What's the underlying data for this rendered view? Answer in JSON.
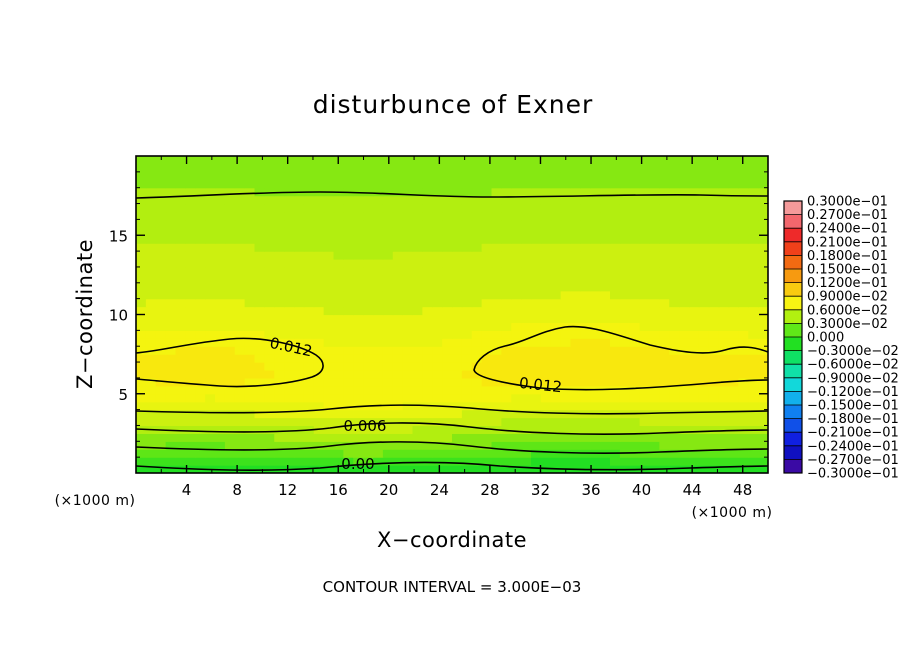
{
  "chart_data": {
    "type": "heatmap",
    "title": "disturbunce of Exner",
    "xlabel": "X−coordinate",
    "ylabel": "Z−coordinate",
    "x_unit_label_left": "(×1000 m)",
    "x_unit_label_right": "(×1000 m)",
    "xlim": [
      0,
      50
    ],
    "ylim": [
      0,
      20
    ],
    "x_ticks": [
      4,
      8,
      12,
      16,
      20,
      24,
      28,
      32,
      36,
      40,
      44,
      48
    ],
    "y_ticks": [
      5,
      10,
      15
    ],
    "contour_interval_text": "CONTOUR INTERVAL = 3.000E−03",
    "contour_labels": [
      {
        "text": "0.012",
        "x": 12.5,
        "z": 7.7
      },
      {
        "text": "0.012",
        "x": 32.0,
        "z": 5.8
      },
      {
        "text": "0.006",
        "x": 18.0,
        "z": 3.0
      },
      {
        "text": "0.00",
        "x": 17.5,
        "z": 0.5
      }
    ],
    "field_rows_z_bottom_to_top": [
      {
        "z": 0.25,
        "values": [
          0.0,
          0.0005,
          0.001,
          0.0015,
          0.001,
          0.0,
          0.0,
          0.0005,
          0.0
        ]
      },
      {
        "z": 1.5,
        "values": [
          0.004,
          0.0038,
          0.0045,
          0.0055,
          0.0045,
          0.0038,
          0.0035,
          0.004,
          0.0042
        ]
      },
      {
        "z": 3.0,
        "values": [
          0.0075,
          0.007,
          0.0078,
          0.0085,
          0.0078,
          0.0068,
          0.0065,
          0.0072,
          0.0075
        ]
      },
      {
        "z": 4.5,
        "values": [
          0.0105,
          0.01,
          0.0108,
          0.0112,
          0.0108,
          0.01,
          0.01,
          0.0104,
          0.0105
        ]
      },
      {
        "z": 6.0,
        "values": [
          0.0122,
          0.0128,
          0.0118,
          0.0115,
          0.0118,
          0.0128,
          0.0134,
          0.0126,
          0.0122
        ]
      },
      {
        "z": 7.5,
        "values": [
          0.012,
          0.0127,
          0.0115,
          0.0108,
          0.0112,
          0.0126,
          0.0131,
          0.0123,
          0.0121
        ]
      },
      {
        "z": 9.0,
        "values": [
          0.0102,
          0.0106,
          0.01,
          0.0096,
          0.0098,
          0.0108,
          0.0112,
          0.0104,
          0.0101
        ]
      },
      {
        "z": 11.0,
        "values": [
          0.0088,
          0.009,
          0.0086,
          0.0084,
          0.0086,
          0.009,
          0.0092,
          0.0088,
          0.0087
        ]
      },
      {
        "z": 13.0,
        "values": [
          0.008,
          0.0081,
          0.0079,
          0.0077,
          0.0079,
          0.0081,
          0.0082,
          0.008,
          0.008
        ]
      },
      {
        "z": 15.0,
        "values": [
          0.0072,
          0.0073,
          0.0071,
          0.007,
          0.0071,
          0.0073,
          0.0073,
          0.0072,
          0.0072
        ]
      },
      {
        "z": 17.0,
        "values": [
          0.0063,
          0.0064,
          0.0062,
          0.0062,
          0.0062,
          0.0063,
          0.0064,
          0.0063,
          0.0063
        ]
      },
      {
        "z": 19.0,
        "values": [
          0.0055,
          0.0056,
          0.0055,
          0.0054,
          0.0055,
          0.0056,
          0.0056,
          0.0055,
          0.0055
        ]
      }
    ],
    "field_columns_x": [
      0,
      6,
      12,
      18,
      24,
      30,
      36,
      42,
      50
    ],
    "colorbar": {
      "labels": [
        "0.3000e−01",
        "0.2700e−01",
        "0.2400e−01",
        "0.2100e−01",
        "0.1800e−01",
        "0.1500e−01",
        "0.1200e−01",
        "0.9000e−02",
        "0.6000e−02",
        "0.3000e−02",
        "0.000",
        "−0.3000e−02",
        "−0.6000e−02",
        "−0.9000e−02",
        "−0.1200e−01",
        "−0.1500e−01",
        "−0.1800e−01",
        "−0.2100e−01",
        "−0.2400e−01",
        "−0.2700e−01",
        "−0.3000e−01"
      ],
      "colors_top_to_bottom": [
        "#f49a9a",
        "#f2676d",
        "#ee2a2a",
        "#f0401a",
        "#f36a12",
        "#f79a10",
        "#f9cb10",
        "#f8f413",
        "#b2f010",
        "#60e818",
        "#22e022",
        "#0fe064",
        "#10e0a8",
        "#12d8da",
        "#12b0ec",
        "#1080f0",
        "#1050e8",
        "#1020e0",
        "#1010c0",
        "#3a0aa4",
        "#6c10a8"
      ]
    }
  }
}
